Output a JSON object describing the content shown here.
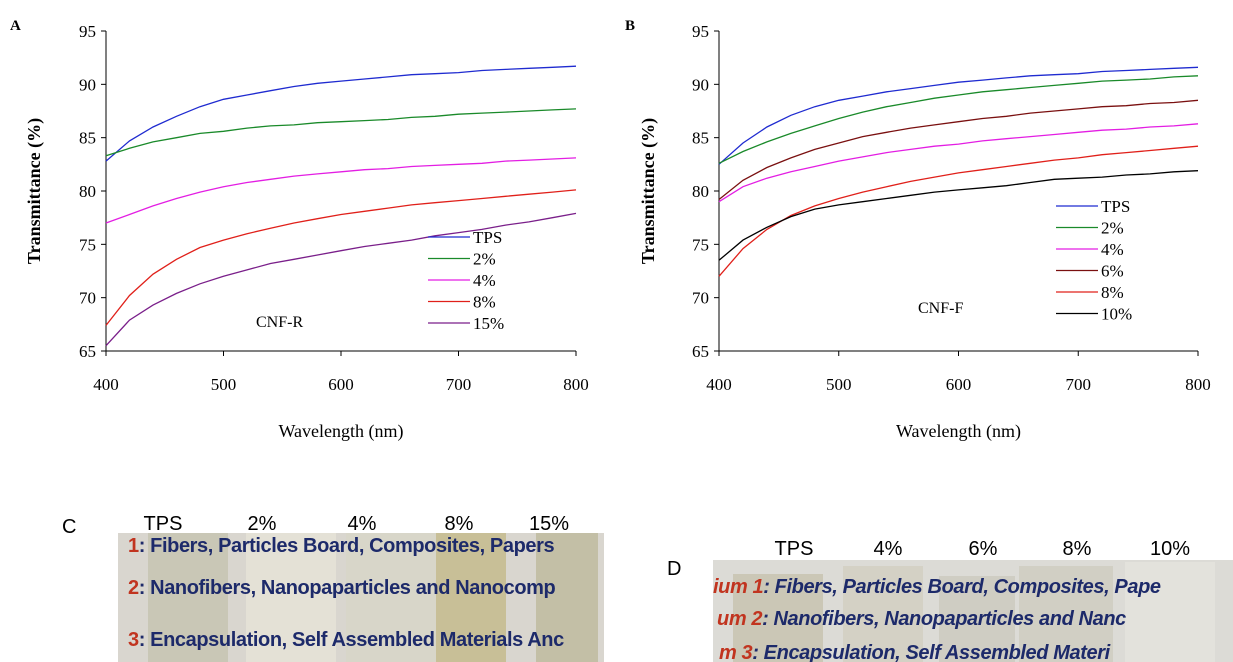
{
  "chart_data": [
    {
      "panel": "A",
      "type": "line",
      "note": "CNF-R",
      "xlabel": "Wavelength (nm)",
      "ylabel": "Transmittance (%)",
      "xlim": [
        400,
        800
      ],
      "ylim": [
        65,
        95
      ],
      "xticks": [
        400,
        500,
        600,
        700,
        800
      ],
      "yticks": [
        65,
        70,
        75,
        80,
        85,
        90,
        95
      ],
      "legend_position": "bottom-right",
      "x": [
        400,
        420,
        440,
        460,
        480,
        500,
        520,
        540,
        560,
        580,
        600,
        620,
        640,
        660,
        680,
        700,
        720,
        740,
        760,
        780,
        800
      ],
      "series": [
        {
          "name": "TPS",
          "color": "#1f2bd0",
          "values": [
            82.8,
            84.7,
            86.0,
            87.0,
            87.9,
            88.6,
            89.0,
            89.4,
            89.8,
            90.1,
            90.3,
            90.5,
            90.7,
            90.9,
            91.0,
            91.1,
            91.3,
            91.4,
            91.5,
            91.6,
            91.7
          ]
        },
        {
          "name": "2%",
          "color": "#1a8a2a",
          "values": [
            83.3,
            84.0,
            84.6,
            85.0,
            85.4,
            85.6,
            85.9,
            86.1,
            86.2,
            86.4,
            86.5,
            86.6,
            86.7,
            86.9,
            87.0,
            87.2,
            87.3,
            87.4,
            87.5,
            87.6,
            87.7
          ]
        },
        {
          "name": "4%",
          "color": "#e31ee3",
          "values": [
            77.0,
            77.8,
            78.6,
            79.3,
            79.9,
            80.4,
            80.8,
            81.1,
            81.4,
            81.6,
            81.8,
            82.0,
            82.1,
            82.3,
            82.4,
            82.5,
            82.6,
            82.8,
            82.9,
            83.0,
            83.1
          ]
        },
        {
          "name": "8%",
          "color": "#e0201a",
          "values": [
            67.4,
            70.2,
            72.2,
            73.6,
            74.7,
            75.4,
            76.0,
            76.5,
            77.0,
            77.4,
            77.8,
            78.1,
            78.4,
            78.7,
            78.9,
            79.1,
            79.3,
            79.5,
            79.7,
            79.9,
            80.1
          ]
        },
        {
          "name": "15%",
          "color": "#7a1f8a",
          "values": [
            65.5,
            67.9,
            69.3,
            70.4,
            71.3,
            72.0,
            72.6,
            73.2,
            73.6,
            74.0,
            74.4,
            74.8,
            75.1,
            75.4,
            75.8,
            76.1,
            76.4,
            76.8,
            77.1,
            77.5,
            77.9
          ]
        }
      ]
    },
    {
      "panel": "B",
      "type": "line",
      "note": "CNF-F",
      "xlabel": "Wavelength (nm)",
      "ylabel": "Transmittance (%)",
      "xlim": [
        400,
        800
      ],
      "ylim": [
        65,
        95
      ],
      "xticks": [
        400,
        500,
        600,
        700,
        800
      ],
      "yticks": [
        65,
        70,
        75,
        80,
        85,
        90,
        95
      ],
      "legend_position": "bottom-right",
      "x": [
        400,
        420,
        440,
        460,
        480,
        500,
        520,
        540,
        560,
        580,
        600,
        620,
        640,
        660,
        680,
        700,
        720,
        740,
        760,
        780,
        800
      ],
      "series": [
        {
          "name": "TPS",
          "color": "#1f2bd0",
          "values": [
            82.5,
            84.5,
            86.0,
            87.1,
            87.9,
            88.5,
            88.9,
            89.3,
            89.6,
            89.9,
            90.2,
            90.4,
            90.6,
            90.8,
            90.9,
            91.0,
            91.2,
            91.3,
            91.4,
            91.5,
            91.6
          ]
        },
        {
          "name": "2%",
          "color": "#1a8a2a",
          "values": [
            82.6,
            83.7,
            84.6,
            85.4,
            86.1,
            86.8,
            87.4,
            87.9,
            88.3,
            88.7,
            89.0,
            89.3,
            89.5,
            89.7,
            89.9,
            90.1,
            90.3,
            90.4,
            90.5,
            90.7,
            90.8
          ]
        },
        {
          "name": "4%",
          "color": "#e31ee3",
          "values": [
            79.0,
            80.4,
            81.2,
            81.8,
            82.3,
            82.8,
            83.2,
            83.6,
            83.9,
            84.2,
            84.4,
            84.7,
            84.9,
            85.1,
            85.3,
            85.5,
            85.7,
            85.8,
            86.0,
            86.1,
            86.3
          ]
        },
        {
          "name": "6%",
          "color": "#7a1010",
          "values": [
            79.2,
            81.0,
            82.2,
            83.1,
            83.9,
            84.5,
            85.1,
            85.5,
            85.9,
            86.2,
            86.5,
            86.8,
            87.0,
            87.3,
            87.5,
            87.7,
            87.9,
            88.0,
            88.2,
            88.3,
            88.5
          ]
        },
        {
          "name": "8%",
          "color": "#e0201a",
          "values": [
            72.0,
            74.6,
            76.4,
            77.7,
            78.6,
            79.3,
            79.9,
            80.4,
            80.9,
            81.3,
            81.7,
            82.0,
            82.3,
            82.6,
            82.9,
            83.1,
            83.4,
            83.6,
            83.8,
            84.0,
            84.2
          ]
        },
        {
          "name": "10%",
          "color": "#000000",
          "values": [
            73.5,
            75.4,
            76.6,
            77.6,
            78.3,
            78.7,
            79.0,
            79.3,
            79.6,
            79.9,
            80.1,
            80.3,
            80.5,
            80.8,
            81.1,
            81.2,
            81.3,
            81.5,
            81.6,
            81.8,
            81.9
          ]
        }
      ]
    }
  ],
  "panel_c": {
    "letter": "C",
    "headers": [
      "TPS",
      "2%",
      "4%",
      "8%",
      "15%"
    ],
    "lines": [
      {
        "num": "1",
        "text": ": Fibers, Particles Board, Composites, Papers"
      },
      {
        "num": "2",
        "text": ": Nanofibers, Nanopaparticles and Nanocomp"
      },
      {
        "num": "3",
        "text": ": Encapsulation, Self Assembled Materials Anc"
      }
    ]
  },
  "panel_d": {
    "letter": "D",
    "headers": [
      "TPS",
      "4%",
      "6%",
      "8%",
      "10%"
    ],
    "lines": [
      {
        "prefix": "ium 1",
        "text": ": Fibers, Particles Board, Composites, Pape"
      },
      {
        "prefix": "um 2",
        "text": ": Nanofibers, Nanopaparticles and Nanc"
      },
      {
        "prefix": "m 3",
        "text": ": Encapsulation, Self Assembled Materi"
      }
    ]
  }
}
